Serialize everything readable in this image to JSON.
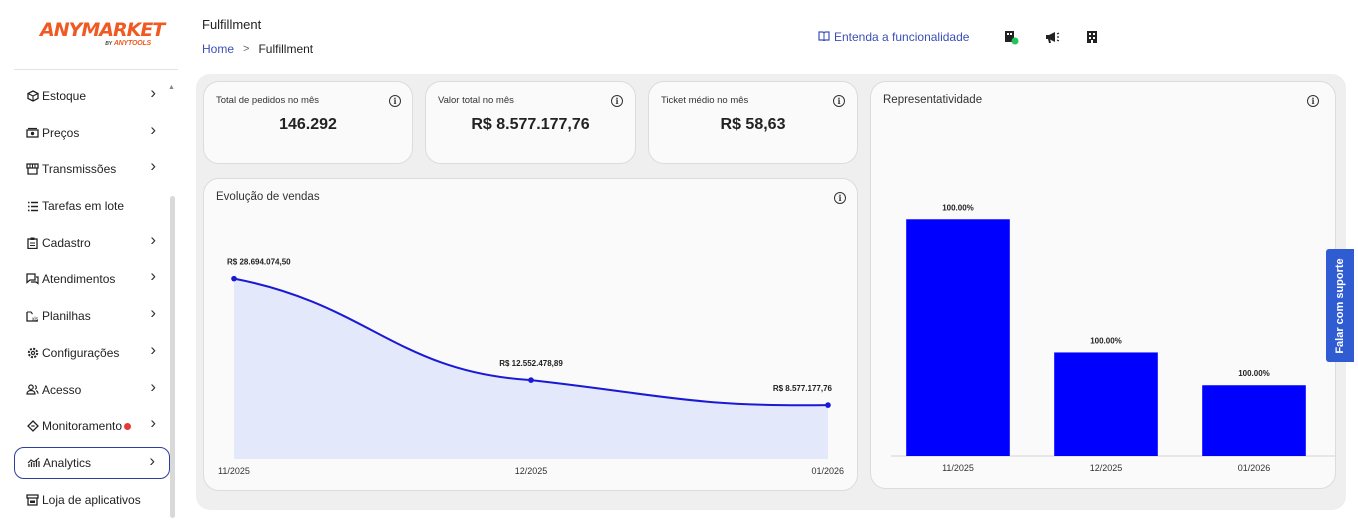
{
  "logo": {
    "main": "ANYMARKET",
    "by": "BY",
    "sub": "ANYTOOLS"
  },
  "sidebar": {
    "items": [
      {
        "label": "Estoque",
        "icon": "box-icon",
        "chevron": true
      },
      {
        "label": "Preços",
        "icon": "cash-icon",
        "chevron": true
      },
      {
        "label": "Transmissões",
        "icon": "store-icon",
        "chevron": true
      },
      {
        "label": "Tarefas em lote",
        "icon": "list-icon",
        "chevron": false
      },
      {
        "label": "Cadastro",
        "icon": "clipboard-icon",
        "chevron": true
      },
      {
        "label": "Atendimentos",
        "icon": "chat-icon",
        "chevron": true
      },
      {
        "label": "Planilhas",
        "icon": "spreadsheet-icon",
        "chevron": true
      },
      {
        "label": "Configurações",
        "icon": "gear-icon",
        "chevron": true
      },
      {
        "label": "Acesso",
        "icon": "users-icon",
        "chevron": true
      },
      {
        "label": "Monitoramento",
        "icon": "diamond-icon",
        "chevron": true,
        "dot_color": "#e53935"
      },
      {
        "label": "Analytics",
        "icon": "analytics-icon",
        "chevron": true,
        "active": true
      },
      {
        "label": "Loja de aplicativos",
        "icon": "shop-icon",
        "chevron": false
      }
    ]
  },
  "header": {
    "title": "Fulfillment",
    "breadcrumb_home": "Home",
    "breadcrumb_current": "Fulfillment",
    "understand_label": "Entenda a funcionalidade",
    "status_dot_color": "#22c55e"
  },
  "kpis": [
    {
      "label": "Total de pedidos no mês",
      "value": "146.292"
    },
    {
      "label": "Valor total no mês",
      "value": "R$ 8.577.177,76"
    },
    {
      "label": "Ticket médio no mês",
      "value": "R$ 58,63"
    }
  ],
  "sales_chart": {
    "title": "Evolução de vendas",
    "info": "i"
  },
  "rep_chart": {
    "title": "Representatividade",
    "info": "i"
  },
  "support_label": "Falar com suporte",
  "colors": {
    "accent": "#3b4fb8",
    "bar": "#0000ff",
    "line": "#1a1ad6",
    "area": "#e4e8fb",
    "brand": "#f05a22"
  },
  "chart_data": [
    {
      "type": "area",
      "categories": [
        "11/2025",
        "12/2025",
        "01/2026"
      ],
      "values": [
        28694074.5,
        12552478.89,
        8577177.76
      ],
      "data_labels": [
        "R$ 28.694.074,50",
        "R$ 12.552.478,89",
        "R$ 8.577.177,76"
      ],
      "ylim": [
        0,
        35000000
      ],
      "grid": false
    },
    {
      "type": "bar",
      "categories": [
        "11/2025",
        "12/2025",
        "01/2026"
      ],
      "values": [
        28694074.5,
        12552478.89,
        8577177.76
      ],
      "data_labels": [
        "100.00%",
        "100.00%",
        "100.00%"
      ],
      "ylim": [
        0,
        32000000
      ],
      "grid": false
    }
  ]
}
